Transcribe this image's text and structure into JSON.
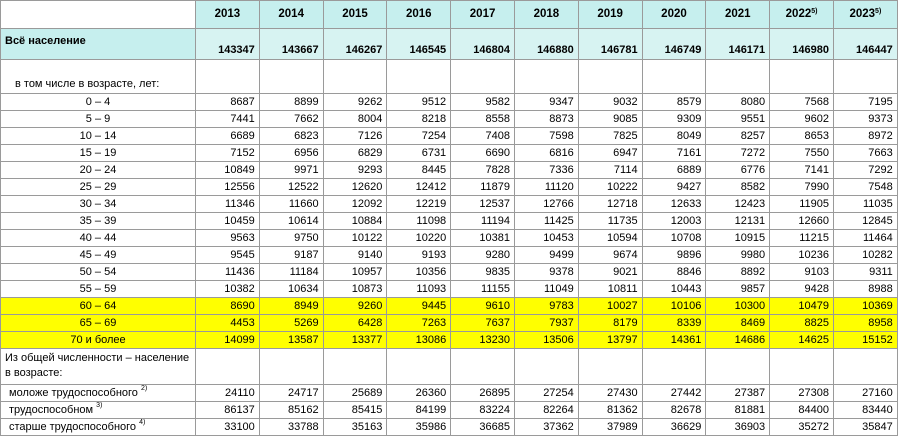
{
  "years": [
    "2013",
    "2014",
    "2015",
    "2016",
    "2017",
    "2018",
    "2019",
    "2020",
    "2021",
    "2022",
    "2023"
  ],
  "year_footnotes": [
    "",
    "",
    "",
    "",
    "",
    "",
    "",
    "",
    "",
    "5)",
    "5)"
  ],
  "total": {
    "label": "Всё население",
    "values": [
      "143347",
      "143667",
      "146267",
      "146545",
      "146804",
      "146880",
      "146781",
      "146749",
      "146171",
      "146980",
      "146447"
    ]
  },
  "age_section_label": "в том числе в возрасте,  лет:",
  "age_groups": [
    {
      "label": "0 – 4",
      "highlight": false,
      "values": [
        "8687",
        "8899",
        "9262",
        "9512",
        "9582",
        "9347",
        "9032",
        "8579",
        "8080",
        "7568",
        "7195"
      ]
    },
    {
      "label": "5 – 9",
      "highlight": false,
      "values": [
        "7441",
        "7662",
        "8004",
        "8218",
        "8558",
        "8873",
        "9085",
        "9309",
        "9551",
        "9602",
        "9373"
      ]
    },
    {
      "label": "10 – 14",
      "highlight": false,
      "values": [
        "6689",
        "6823",
        "7126",
        "7254",
        "7408",
        "7598",
        "7825",
        "8049",
        "8257",
        "8653",
        "8972"
      ]
    },
    {
      "label": "15 – 19",
      "highlight": false,
      "values": [
        "7152",
        "6956",
        "6829",
        "6731",
        "6690",
        "6816",
        "6947",
        "7161",
        "7272",
        "7550",
        "7663"
      ]
    },
    {
      "label": "20 – 24",
      "highlight": false,
      "values": [
        "10849",
        "9971",
        "9293",
        "8445",
        "7828",
        "7336",
        "7114",
        "6889",
        "6776",
        "7141",
        "7292"
      ]
    },
    {
      "label": "25 – 29",
      "highlight": false,
      "values": [
        "12556",
        "12522",
        "12620",
        "12412",
        "11879",
        "11120",
        "10222",
        "9427",
        "8582",
        "7990",
        "7548"
      ]
    },
    {
      "label": "30 – 34",
      "highlight": false,
      "values": [
        "11346",
        "11660",
        "12092",
        "12219",
        "12537",
        "12766",
        "12718",
        "12633",
        "12423",
        "11905",
        "11035"
      ]
    },
    {
      "label": "35 – 39",
      "highlight": false,
      "values": [
        "10459",
        "10614",
        "10884",
        "11098",
        "11194",
        "11425",
        "11735",
        "12003",
        "12131",
        "12660",
        "12845"
      ]
    },
    {
      "label": "40 – 44",
      "highlight": false,
      "values": [
        "9563",
        "9750",
        "10122",
        "10220",
        "10381",
        "10453",
        "10594",
        "10708",
        "10915",
        "11215",
        "11464"
      ]
    },
    {
      "label": "45 – 49",
      "highlight": false,
      "values": [
        "9545",
        "9187",
        "9140",
        "9193",
        "9280",
        "9499",
        "9674",
        "9896",
        "9980",
        "10236",
        "10282"
      ]
    },
    {
      "label": "50 – 54",
      "highlight": false,
      "values": [
        "11436",
        "11184",
        "10957",
        "10356",
        "9835",
        "9378",
        "9021",
        "8846",
        "8892",
        "9103",
        "9311"
      ]
    },
    {
      "label": "55 – 59",
      "highlight": false,
      "values": [
        "10382",
        "10634",
        "10873",
        "11093",
        "11155",
        "11049",
        "10811",
        "10443",
        "9857",
        "9428",
        "8988"
      ]
    },
    {
      "label": "60 – 64",
      "highlight": true,
      "values": [
        "8690",
        "8949",
        "9260",
        "9445",
        "9610",
        "9783",
        "10027",
        "10106",
        "10300",
        "10479",
        "10369"
      ]
    },
    {
      "label": "65 – 69",
      "highlight": true,
      "values": [
        "4453",
        "5269",
        "6428",
        "7263",
        "7637",
        "7937",
        "8179",
        "8339",
        "8469",
        "8825",
        "8958"
      ]
    },
    {
      "label": "70 и более",
      "highlight": true,
      "values": [
        "14099",
        "13587",
        "13377",
        "13086",
        "13230",
        "13506",
        "13797",
        "14361",
        "14686",
        "14625",
        "15152"
      ]
    }
  ],
  "work_section_label": "Из общей численности – население в возрасте:",
  "work_groups": [
    {
      "label": "моложе трудоспособного",
      "note": "2)",
      "values": [
        "24110",
        "24717",
        "25689",
        "26360",
        "26895",
        "27254",
        "27430",
        "27442",
        "27387",
        "27308",
        "27160"
      ]
    },
    {
      "label": "трудоспособном",
      "note": "3)",
      "values": [
        "86137",
        "85162",
        "85415",
        "84199",
        "83224",
        "82264",
        "81362",
        "82678",
        "81881",
        "84400",
        "83440"
      ]
    },
    {
      "label": "старше трудоспособного",
      "note": "4)",
      "values": [
        "33100",
        "33788",
        "35163",
        "35986",
        "36685",
        "37362",
        "37989",
        "36629",
        "36903",
        "35272",
        "35847"
      ]
    }
  ],
  "colors": {
    "header_bg": "#c6efee",
    "highlight": "#ffff00",
    "border": "#9a9a9a"
  }
}
